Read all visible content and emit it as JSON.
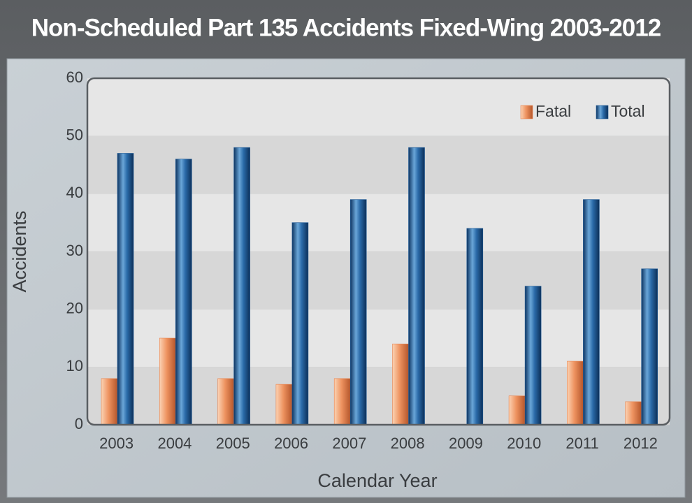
{
  "chart_data": {
    "type": "bar",
    "title": "Non-Scheduled Part 135 Accidents Fixed-Wing 2003-2012",
    "x_label": "Calendar Year",
    "y_label": "Accidents",
    "categories": [
      "2003",
      "2004",
      "2005",
      "2006",
      "2007",
      "2008",
      "2009",
      "2010",
      "2011",
      "2012"
    ],
    "series": [
      {
        "name": "Fatal",
        "color": "#e8834e",
        "values": [
          8,
          15,
          8,
          7,
          8,
          14,
          0,
          5,
          11,
          4
        ]
      },
      {
        "name": "Total",
        "color": "#1f5a96",
        "values": [
          47,
          46,
          48,
          35,
          39,
          48,
          34,
          24,
          39,
          27
        ]
      }
    ],
    "ylim": [
      0,
      60
    ],
    "yticks": [
      0,
      10,
      20,
      30,
      40,
      50,
      60
    ],
    "grid": true,
    "legend": "top-right"
  }
}
